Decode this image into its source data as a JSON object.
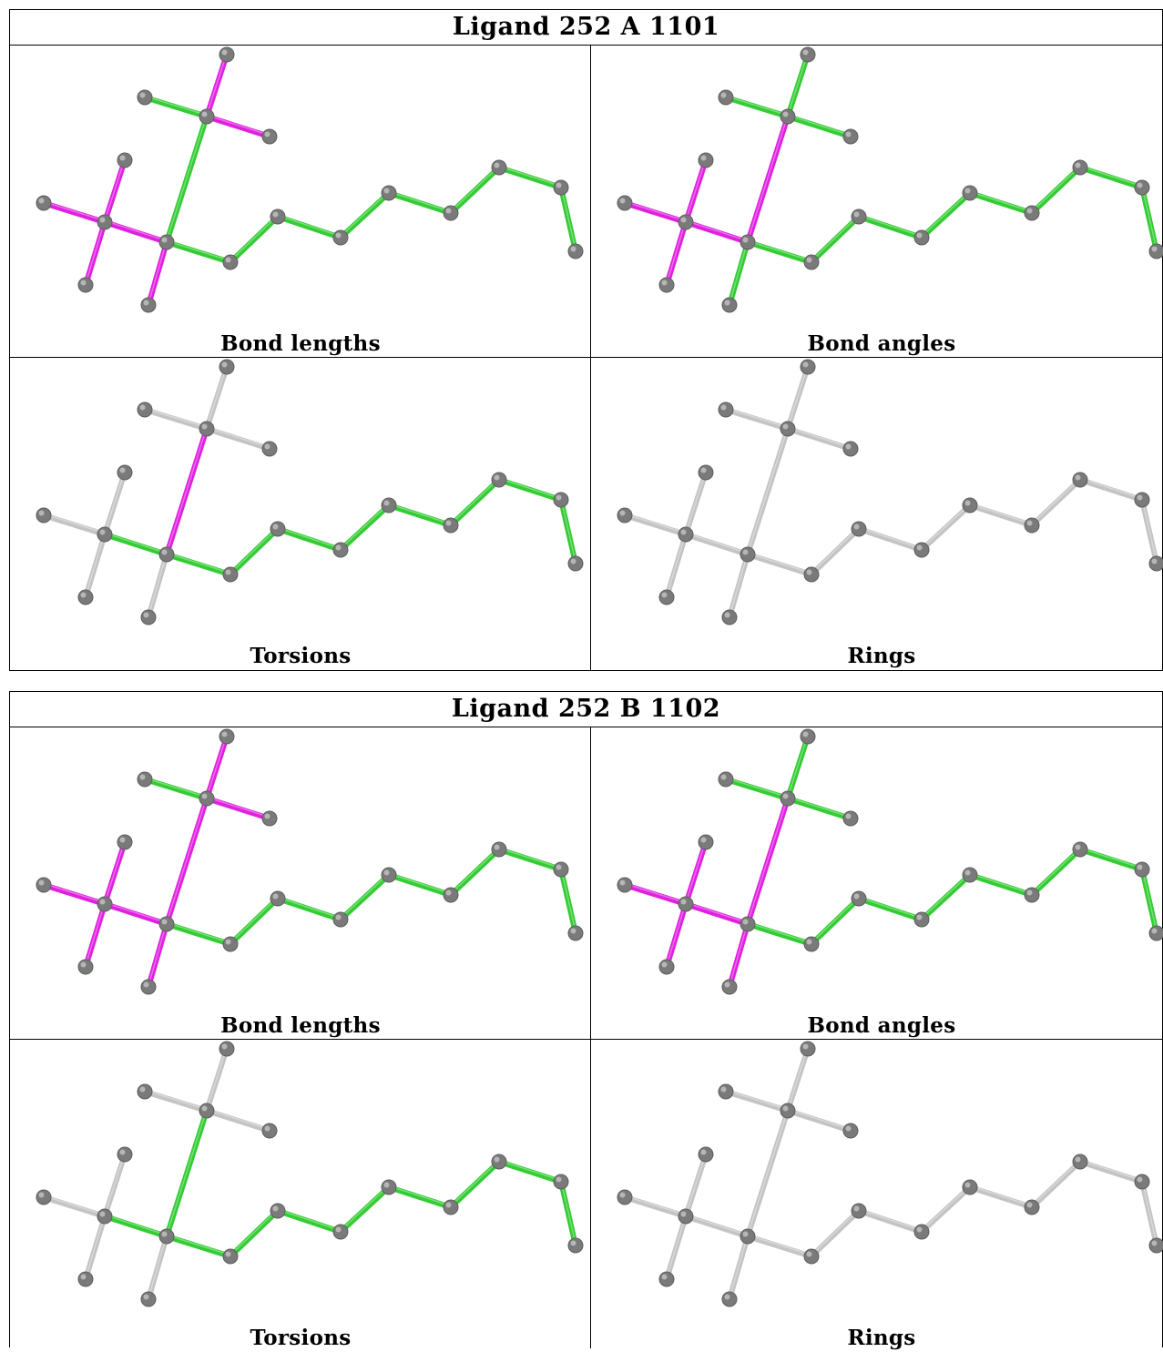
{
  "colors": {
    "ok": "#33cc33",
    "outlier": "#e020e0",
    "unchecked": "#c4c4c4",
    "atom": "#7a7a7a"
  },
  "ligands": [
    {
      "title": "Ligand 252 A 1101",
      "panels": [
        {
          "caption": "Bond lengths",
          "bond_status": [
            "outlier",
            "outlier",
            "ok",
            "ok",
            "outlier",
            "outlier",
            "outlier",
            "outlier",
            "outlier",
            "ok",
            "ok",
            "ok",
            "ok",
            "ok",
            "ok",
            "ok",
            "ok",
            "ok",
            "ok"
          ]
        },
        {
          "caption": "Bond angles",
          "bond_status": [
            "ok",
            "ok",
            "ok",
            "outlier",
            "outlier",
            "outlier",
            "outlier",
            "outlier",
            "ok",
            "ok",
            "ok",
            "ok",
            "ok",
            "ok",
            "ok",
            "ok",
            "ok",
            "ok",
            "ok"
          ]
        },
        {
          "caption": "Torsions",
          "bond_status": [
            "unchecked",
            "unchecked",
            "unchecked",
            "outlier",
            "unchecked",
            "unchecked",
            "unchecked",
            "ok",
            "unchecked",
            "ok",
            "ok",
            "ok",
            "ok",
            "ok",
            "ok",
            "ok",
            "ok",
            "ok",
            "unchecked"
          ]
        },
        {
          "caption": "Rings",
          "bond_status": [
            "unchecked",
            "unchecked",
            "unchecked",
            "unchecked",
            "unchecked",
            "unchecked",
            "unchecked",
            "unchecked",
            "unchecked",
            "unchecked",
            "unchecked",
            "unchecked",
            "unchecked",
            "unchecked",
            "unchecked",
            "unchecked",
            "unchecked",
            "unchecked",
            "unchecked"
          ]
        }
      ]
    },
    {
      "title": "Ligand 252 B 1102",
      "panels": [
        {
          "caption": "Bond lengths",
          "bond_status": [
            "outlier",
            "outlier",
            "ok",
            "outlier",
            "outlier",
            "outlier",
            "outlier",
            "outlier",
            "outlier",
            "ok",
            "ok",
            "ok",
            "ok",
            "ok",
            "ok",
            "ok",
            "ok",
            "ok",
            "ok"
          ]
        },
        {
          "caption": "Bond angles",
          "bond_status": [
            "ok",
            "ok",
            "ok",
            "outlier",
            "outlier",
            "outlier",
            "outlier",
            "outlier",
            "outlier",
            "ok",
            "ok",
            "ok",
            "ok",
            "ok",
            "ok",
            "ok",
            "ok",
            "ok",
            "ok"
          ]
        },
        {
          "caption": "Torsions",
          "bond_status": [
            "unchecked",
            "unchecked",
            "unchecked",
            "ok",
            "unchecked",
            "unchecked",
            "unchecked",
            "ok",
            "unchecked",
            "ok",
            "ok",
            "ok",
            "ok",
            "ok",
            "ok",
            "ok",
            "ok",
            "ok",
            "unchecked"
          ]
        },
        {
          "caption": "Rings",
          "bond_status": [
            "unchecked",
            "unchecked",
            "unchecked",
            "unchecked",
            "unchecked",
            "unchecked",
            "unchecked",
            "unchecked",
            "unchecked",
            "unchecked",
            "unchecked",
            "unchecked",
            "unchecked",
            "unchecked",
            "unchecked",
            "unchecked",
            "unchecked",
            "unchecked",
            "unchecked"
          ]
        }
      ]
    }
  ]
}
